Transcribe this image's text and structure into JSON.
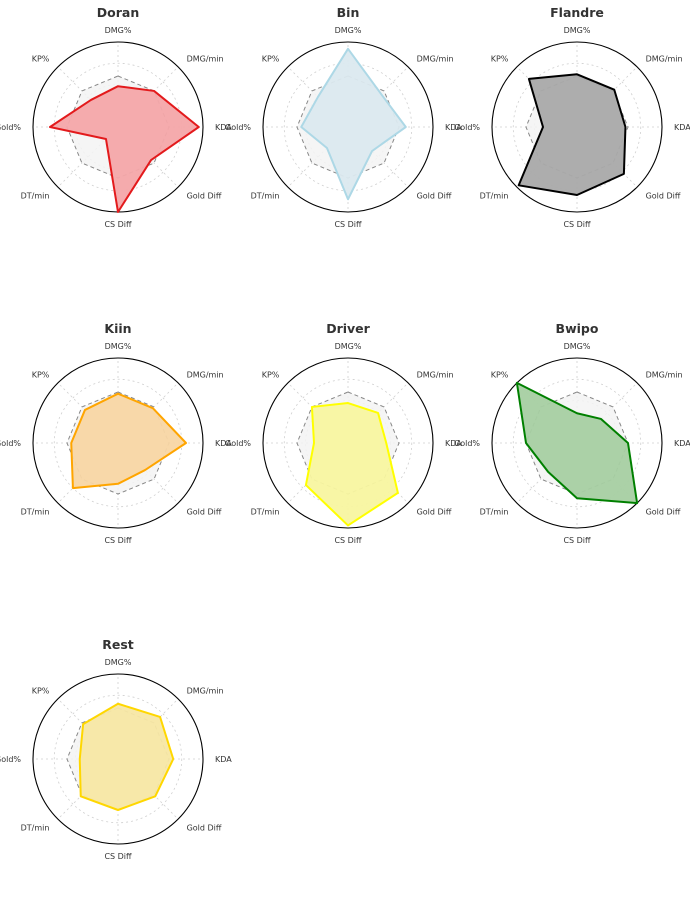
{
  "page": {
    "background": "#ffffff"
  },
  "chart_data": [
    {
      "type": "radar",
      "title": "Doran",
      "axes": [
        "DMG%",
        "DMG/min",
        "KDA",
        "Gold Diff",
        "CS Diff",
        "DT/min",
        "Gold%",
        "KP%"
      ],
      "series": [
        {
          "values": [
            0.48,
            0.6,
            0.95,
            0.55,
            1.0,
            0.2,
            0.8,
            0.45
          ],
          "color": "#e31a1c",
          "fill": "#f4a7a9"
        },
        {
          "values": [
            0.6,
            0.6,
            0.6,
            0.6,
            0.6,
            0.6,
            0.6,
            0.6
          ],
          "color": "#888888",
          "fill": "#f3f3f3",
          "dashed": true
        }
      ],
      "range": [
        0,
        1
      ]
    },
    {
      "type": "radar",
      "title": "Bin",
      "axes": [
        "DMG%",
        "DMG/min",
        "KDA",
        "Gold Diff",
        "CS Diff",
        "DT/min",
        "Gold%",
        "KP%"
      ],
      "series": [
        {
          "values": [
            0.92,
            0.55,
            0.68,
            0.4,
            0.85,
            0.35,
            0.55,
            0.5
          ],
          "color": "#add8e6",
          "fill": "#dbe9ef"
        },
        {
          "values": [
            0.6,
            0.6,
            0.6,
            0.6,
            0.6,
            0.6,
            0.6,
            0.6
          ],
          "color": "#888888",
          "fill": "#f3f3f3",
          "dashed": true
        }
      ],
      "range": [
        0,
        1
      ]
    },
    {
      "type": "radar",
      "title": "Flandre",
      "axes": [
        "DMG%",
        "DMG/min",
        "KDA",
        "Gold Diff",
        "CS Diff",
        "DT/min",
        "Gold%",
        "KP%"
      ],
      "series": [
        {
          "values": [
            0.62,
            0.62,
            0.57,
            0.78,
            0.8,
            0.97,
            0.4,
            0.8
          ],
          "color": "#000000",
          "fill": "#a9a9a9"
        },
        {
          "values": [
            0.6,
            0.6,
            0.6,
            0.6,
            0.6,
            0.6,
            0.6,
            0.6
          ],
          "color": "#888888",
          "fill": "#f3f3f3",
          "dashed": true
        }
      ],
      "range": [
        0,
        1
      ]
    },
    {
      "type": "radar",
      "title": "Kiin",
      "axes": [
        "DMG%",
        "DMG/min",
        "KDA",
        "Gold Diff",
        "CS Diff",
        "DT/min",
        "Gold%",
        "KP%"
      ],
      "series": [
        {
          "values": [
            0.58,
            0.58,
            0.8,
            0.45,
            0.48,
            0.75,
            0.55,
            0.55
          ],
          "color": "#ffa500",
          "fill": "#f8d6a4"
        },
        {
          "values": [
            0.6,
            0.6,
            0.6,
            0.6,
            0.6,
            0.6,
            0.6,
            0.6
          ],
          "color": "#888888",
          "fill": "#f3f3f3",
          "dashed": true
        }
      ],
      "range": [
        0,
        1
      ]
    },
    {
      "type": "radar",
      "title": "Driver",
      "axes": [
        "DMG%",
        "DMG/min",
        "KDA",
        "Gold Diff",
        "CS Diff",
        "DT/min",
        "Gold%",
        "KP%"
      ],
      "series": [
        {
          "values": [
            0.47,
            0.5,
            0.45,
            0.83,
            0.97,
            0.7,
            0.4,
            0.6
          ],
          "color": "#ffff00",
          "fill": "#f8f5a0"
        },
        {
          "values": [
            0.6,
            0.6,
            0.6,
            0.6,
            0.6,
            0.6,
            0.6,
            0.6
          ],
          "color": "#888888",
          "fill": "#f3f3f3",
          "dashed": true
        }
      ],
      "range": [
        0,
        1
      ]
    },
    {
      "type": "radar",
      "title": "Bwipo",
      "axes": [
        "DMG%",
        "DMG/min",
        "KDA",
        "Gold Diff",
        "CS Diff",
        "DT/min",
        "Gold%",
        "KP%"
      ],
      "series": [
        {
          "values": [
            0.35,
            0.4,
            0.6,
            1.0,
            0.65,
            0.48,
            0.6,
            1.0
          ],
          "color": "#008000",
          "fill": "#a6cfa2"
        },
        {
          "values": [
            0.6,
            0.6,
            0.6,
            0.6,
            0.6,
            0.6,
            0.6,
            0.6
          ],
          "color": "#888888",
          "fill": "#f3f3f3",
          "dashed": true
        }
      ],
      "range": [
        0,
        1
      ]
    },
    {
      "type": "radar",
      "title": "Rest",
      "axes": [
        "DMG%",
        "DMG/min",
        "KDA",
        "Gold Diff",
        "CS Diff",
        "DT/min",
        "Gold%",
        "KP%"
      ],
      "series": [
        {
          "values": [
            0.65,
            0.7,
            0.65,
            0.62,
            0.6,
            0.62,
            0.45,
            0.58
          ],
          "color": "#ffd700",
          "fill": "#f7e7a4"
        },
        {
          "values": [
            0.6,
            0.6,
            0.6,
            0.6,
            0.6,
            0.6,
            0.6,
            0.6
          ],
          "color": "#888888",
          "fill": "#f3f3f3",
          "dashed": true
        }
      ],
      "range": [
        0,
        1
      ]
    }
  ]
}
